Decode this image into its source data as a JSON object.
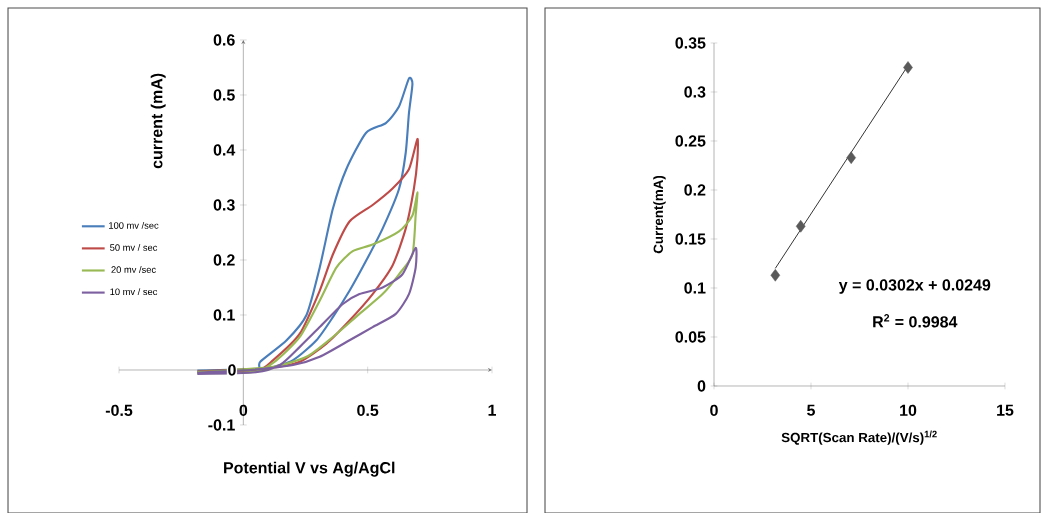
{
  "chart_data": [
    {
      "type": "line",
      "xlabel": "Potential V vs Ag/AgCl",
      "ylabel": "current (mA)",
      "xlim": [
        -0.5,
        1
      ],
      "ylim": [
        -0.1,
        0.6
      ],
      "xticks": [
        -0.5,
        0,
        0.5,
        1
      ],
      "yticks": [
        -0.1,
        0,
        0.1,
        0.2,
        0.3,
        0.4,
        0.5,
        0.6
      ],
      "legend": "left",
      "marker": "none",
      "line_style": "solid",
      "series": [
        {
          "name": "100 mv /sec",
          "color": "#4a7ebb",
          "x": [
            -0.185,
            0.05,
            0.068,
            0.174,
            0.254,
            0.307,
            0.36,
            0.414,
            0.493,
            0.573,
            0.626,
            0.666,
            0.68,
            0.666,
            0.653,
            0.626,
            0.56,
            0.493,
            0.427,
            0.36,
            0.294,
            0.2,
            0.094,
            -0.1,
            -0.185
          ],
          "values": [
            -0.004,
            -0.001,
            0.015,
            0.054,
            0.1,
            0.186,
            0.293,
            0.365,
            0.431,
            0.449,
            0.479,
            0.53,
            0.52,
            0.467,
            0.395,
            0.329,
            0.257,
            0.198,
            0.144,
            0.096,
            0.054,
            0.018,
            0.003,
            0,
            -0.001
          ]
        },
        {
          "name": "50 mv / sec",
          "color": "#be4b48",
          "x": [
            -0.185,
            0.05,
            0.12,
            0.227,
            0.307,
            0.36,
            0.427,
            0.52,
            0.6,
            0.666,
            0.7,
            0.7,
            0.686,
            0.653,
            0.6,
            0.52,
            0.427,
            0.334,
            0.227,
            0.094,
            -0.1,
            -0.185
          ],
          "values": [
            -0.005,
            -0.002,
            0.018,
            0.066,
            0.144,
            0.21,
            0.27,
            0.3,
            0.33,
            0.365,
            0.42,
            0.383,
            0.33,
            0.257,
            0.19,
            0.138,
            0.09,
            0.048,
            0.015,
            0.003,
            -0.001,
            -0.003
          ]
        },
        {
          "name": "20 mv /sec",
          "color": "#98b954",
          "x": [
            -0.185,
            0.05,
            0.134,
            0.227,
            0.307,
            0.374,
            0.44,
            0.52,
            0.626,
            0.68,
            0.7,
            0.693,
            0.68,
            0.626,
            0.56,
            0.467,
            0.36,
            0.254,
            0.12,
            -0.1,
            -0.185
          ],
          "values": [
            -0.006,
            -0.003,
            0.018,
            0.06,
            0.126,
            0.186,
            0.216,
            0.228,
            0.252,
            0.281,
            0.323,
            0.281,
            0.21,
            0.174,
            0.138,
            0.102,
            0.06,
            0.024,
            0.006,
            -0.002,
            -0.004
          ]
        },
        {
          "name": "10 mv / sec",
          "color": "#7d60a0",
          "x": [
            -0.185,
            0.05,
            0.15,
            0.227,
            0.307,
            0.4,
            0.467,
            0.56,
            0.64,
            0.693,
            0.693,
            0.666,
            0.613,
            0.52,
            0.427,
            0.307,
            0.2,
            0.028,
            -0.1,
            -0.185
          ],
          "values": [
            -0.007,
            -0.004,
            0.01,
            0.042,
            0.078,
            0.12,
            0.138,
            0.15,
            0.174,
            0.222,
            0.186,
            0.138,
            0.102,
            0.078,
            0.054,
            0.024,
            0.009,
            0,
            -0.003,
            -0.005
          ]
        }
      ]
    },
    {
      "type": "scatter",
      "xlabel": "SQRT(Scan Rate)/(V/s)$^{1/2}$",
      "ylabel": "Current(mA)",
      "xlim": [
        0,
        15
      ],
      "ylim": [
        0,
        0.35
      ],
      "xticks": [
        0,
        5,
        10,
        15
      ],
      "yticks": [
        0,
        0.05,
        0.1,
        0.15,
        0.2,
        0.25,
        0.3,
        0.35
      ],
      "marker": "diamond",
      "annotations": [
        "y = 0.0302x + 0.0249",
        "R$^{2}$ = 0.9984"
      ],
      "series": [
        {
          "color": "#5a5a5a",
          "x": [
            3.16,
            4.47,
            7.07,
            10
          ],
          "values": [
            0.113,
            0.163,
            0.233,
            0.325
          ]
        },
        {
          "type": "line",
          "marker": "none",
          "color": "#000000",
          "x": [
            3.16,
            10
          ],
          "values": [
            0.12,
            0.327
          ]
        }
      ]
    }
  ]
}
